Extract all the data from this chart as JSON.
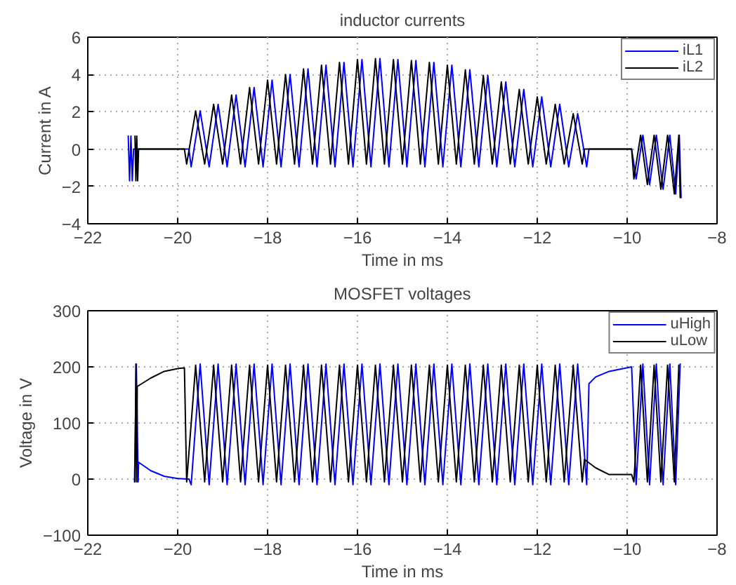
{
  "chart_data": [
    {
      "type": "line",
      "title": "inductor currents",
      "xlabel": "Time in ms",
      "ylabel": "Current in A",
      "xlim": [
        -22,
        -8
      ],
      "xticks": [
        -22,
        -20,
        -18,
        -16,
        -14,
        -12,
        -10,
        -8
      ],
      "ylim": [
        -4,
        6
      ],
      "yticks": [
        -4,
        -2,
        0,
        2,
        4,
        6
      ],
      "grid": true,
      "legend": "top right",
      "line_style": "solid",
      "series": [
        {
          "name": "iL1",
          "color": "#0000ff",
          "x": [
            -21.1,
            -21.07,
            -21.04,
            -21.01,
            -20.98,
            -19.75,
            -19.7,
            -19.5,
            -19.3,
            -19.1,
            -18.9,
            -18.7,
            -18.5,
            -18.3,
            -18.1,
            -17.9,
            -17.7,
            -17.5,
            -17.3,
            -17.1,
            -16.9,
            -16.7,
            -16.5,
            -16.3,
            -16.1,
            -15.9,
            -15.7,
            -15.5,
            -15.3,
            -15.1,
            -14.9,
            -14.7,
            -14.5,
            -14.3,
            -14.1,
            -13.9,
            -13.7,
            -13.5,
            -13.3,
            -13.1,
            -12.9,
            -12.7,
            -12.5,
            -12.3,
            -12.1,
            -11.9,
            -11.7,
            -11.5,
            -11.3,
            -11.1,
            -10.9,
            -10.85,
            -9.9,
            -9.8,
            -9.65,
            -9.5,
            -9.35,
            -9.2,
            -9.05,
            -8.92,
            -8.84,
            -8.8
          ],
          "values": [
            0.7,
            -1.7,
            0.7,
            -1.7,
            0,
            0,
            -0.95,
            2.05,
            -0.95,
            2.4,
            -0.95,
            2.9,
            -0.95,
            3.3,
            -0.95,
            3.7,
            -0.95,
            4.0,
            -0.95,
            4.3,
            -0.95,
            4.5,
            -0.95,
            4.65,
            -0.95,
            4.8,
            -0.95,
            4.85,
            -0.95,
            4.8,
            -0.95,
            4.75,
            -0.95,
            4.65,
            -0.95,
            4.5,
            -0.95,
            4.25,
            -0.95,
            3.95,
            -0.95,
            3.6,
            -0.95,
            3.2,
            -0.95,
            2.8,
            -0.95,
            2.4,
            -0.95,
            1.9,
            -0.95,
            0,
            0,
            -1.6,
            0.75,
            -1.9,
            0.75,
            -2.15,
            0.75,
            -2.4,
            0.75,
            -2.6
          ]
        },
        {
          "name": "iL2",
          "color": "#000000",
          "x": [
            -20.95,
            -20.93,
            -20.91,
            -20.89,
            -20.87,
            -19.85,
            -19.8,
            -19.6,
            -19.4,
            -19.2,
            -19.0,
            -18.8,
            -18.6,
            -18.4,
            -18.2,
            -18.0,
            -17.8,
            -17.6,
            -17.4,
            -17.2,
            -17.0,
            -16.8,
            -16.6,
            -16.4,
            -16.2,
            -16.0,
            -15.8,
            -15.6,
            -15.4,
            -15.2,
            -15.0,
            -14.8,
            -14.6,
            -14.4,
            -14.2,
            -14.0,
            -13.8,
            -13.6,
            -13.4,
            -13.2,
            -13.0,
            -12.8,
            -12.6,
            -12.4,
            -12.2,
            -12.0,
            -11.8,
            -11.6,
            -11.4,
            -11.2,
            -11.0,
            -10.95,
            -9.9,
            -9.85,
            -9.7,
            -9.55,
            -9.4,
            -9.25,
            -9.1,
            -8.95,
            -8.85,
            -8.82
          ],
          "values": [
            0.7,
            -1.7,
            0.7,
            -1.7,
            0,
            0,
            -0.8,
            2.05,
            -0.8,
            2.4,
            -0.8,
            2.9,
            -0.8,
            3.3,
            -0.8,
            3.7,
            -0.8,
            4.0,
            -0.8,
            4.3,
            -0.8,
            4.5,
            -0.8,
            4.65,
            -0.8,
            4.8,
            -0.8,
            4.85,
            -0.8,
            4.8,
            -0.8,
            4.75,
            -0.8,
            4.65,
            -0.8,
            4.5,
            -0.8,
            4.25,
            -0.8,
            3.95,
            -0.8,
            3.6,
            -0.8,
            3.2,
            -0.8,
            2.8,
            -0.8,
            2.4,
            -0.8,
            1.9,
            -0.8,
            0,
            0,
            -1.6,
            0.75,
            -1.9,
            0.75,
            -2.15,
            0.75,
            -2.4,
            0.75,
            -2.6
          ]
        }
      ]
    },
    {
      "type": "line",
      "title": "MOSFET voltages",
      "xlabel": "Time in ms",
      "ylabel": "Voltage in V",
      "xlim": [
        -22,
        -8
      ],
      "xticks": [
        -22,
        -20,
        -18,
        -16,
        -14,
        -12,
        -10,
        -8
      ],
      "ylim": [
        -100,
        300
      ],
      "yticks": [
        -100,
        0,
        100,
        200,
        300
      ],
      "grid": true,
      "legend": "top right",
      "line_style": "solid",
      "series": [
        {
          "name": "uHigh",
          "color": "#0000ff",
          "x": [
            -20.96,
            -20.92,
            -20.88,
            -20.87,
            -20.6,
            -20.3,
            -20.0,
            -19.75,
            -19.7,
            -19.5,
            -19.3,
            -19.1,
            -18.9,
            -18.7,
            -18.5,
            -18.3,
            -18.1,
            -17.9,
            -17.7,
            -17.5,
            -17.3,
            -17.1,
            -16.9,
            -16.7,
            -16.5,
            -16.3,
            -16.1,
            -15.9,
            -15.7,
            -15.5,
            -15.3,
            -15.1,
            -14.9,
            -14.7,
            -14.5,
            -14.3,
            -14.1,
            -13.9,
            -13.7,
            -13.5,
            -13.3,
            -13.1,
            -12.9,
            -12.7,
            -12.5,
            -12.3,
            -12.1,
            -11.9,
            -11.7,
            -11.5,
            -11.3,
            -11.1,
            -10.9,
            -10.85,
            -10.7,
            -10.4,
            -9.9,
            -9.8,
            -9.65,
            -9.5,
            -9.35,
            -9.2,
            -9.05,
            -8.92,
            -8.82
          ],
          "values": [
            -5,
            205,
            -5,
            30,
            15,
            5,
            1,
            0,
            -10,
            205,
            -10,
            205,
            -10,
            205,
            -10,
            205,
            -10,
            205,
            -10,
            205,
            -10,
            205,
            -10,
            205,
            -10,
            205,
            -10,
            205,
            -10,
            205,
            -10,
            205,
            -10,
            205,
            -10,
            205,
            -10,
            205,
            -10,
            205,
            -10,
            205,
            -10,
            205,
            -10,
            205,
            -10,
            205,
            -10,
            205,
            -10,
            205,
            -10,
            170,
            182,
            192,
            200,
            -10,
            205,
            -10,
            205,
            -10,
            205,
            -10,
            205
          ]
        },
        {
          "name": "uLow",
          "color": "#000000",
          "x": [
            -20.95,
            -20.93,
            -20.91,
            -20.9,
            -20.6,
            -20.3,
            -20.0,
            -19.85,
            -19.8,
            -19.6,
            -19.4,
            -19.2,
            -19.0,
            -18.8,
            -18.6,
            -18.4,
            -18.2,
            -18.0,
            -17.8,
            -17.6,
            -17.4,
            -17.2,
            -17.0,
            -16.8,
            -16.6,
            -16.4,
            -16.2,
            -16.0,
            -15.8,
            -15.6,
            -15.4,
            -15.2,
            -15.0,
            -14.8,
            -14.6,
            -14.4,
            -14.2,
            -14.0,
            -13.8,
            -13.6,
            -13.4,
            -13.2,
            -13.0,
            -12.8,
            -12.6,
            -12.4,
            -12.2,
            -12.0,
            -11.8,
            -11.6,
            -11.4,
            -11.2,
            -11.0,
            -10.95,
            -10.7,
            -10.4,
            -9.9,
            -9.85,
            -9.7,
            -9.55,
            -9.4,
            -9.25,
            -9.1,
            -8.95,
            -8.85
          ],
          "values": [
            -5,
            205,
            -5,
            165,
            180,
            192,
            197,
            198,
            -5,
            203,
            -5,
            203,
            -5,
            203,
            -5,
            203,
            -5,
            203,
            -5,
            203,
            -5,
            203,
            -5,
            203,
            -5,
            203,
            -5,
            203,
            -5,
            203,
            -5,
            203,
            -5,
            203,
            -5,
            203,
            -5,
            203,
            -5,
            203,
            -5,
            203,
            -5,
            203,
            -5,
            203,
            -5,
            203,
            -5,
            203,
            -5,
            203,
            -5,
            35,
            20,
            8,
            8,
            -5,
            203,
            -5,
            203,
            -5,
            203,
            -5,
            203
          ]
        }
      ]
    }
  ]
}
